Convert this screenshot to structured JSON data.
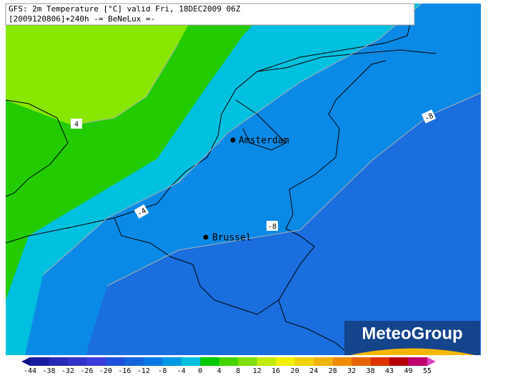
{
  "header": {
    "line1": "GFS: 2m Temperature [°C] valid Fri, 18DEC2009 06Z",
    "line2": "[2009120806]+240h -= BeNeLux =-"
  },
  "map": {
    "cities": [
      {
        "name": "Amsterdam"
      },
      {
        "name": "Brussel"
      }
    ],
    "contour_labels": [
      "4",
      "-4",
      "-8",
      "-8"
    ]
  },
  "logo": "MeteoGroup",
  "legend": {
    "ticks": [
      -44,
      -38,
      -32,
      -26,
      -20,
      -16,
      -12,
      -8,
      -4,
      0,
      4,
      8,
      12,
      16,
      20,
      24,
      28,
      32,
      38,
      43,
      49,
      55
    ]
  }
}
